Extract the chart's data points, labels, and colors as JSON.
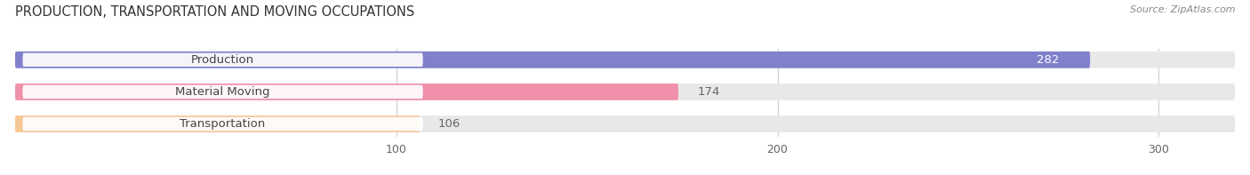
{
  "title": "PRODUCTION, TRANSPORTATION AND MOVING OCCUPATIONS",
  "source": "Source: ZipAtlas.com",
  "categories": [
    "Production",
    "Material Moving",
    "Transportation"
  ],
  "values": [
    282,
    174,
    106
  ],
  "bar_colors": [
    "#8080cc",
    "#f090aa",
    "#f5c896"
  ],
  "bar_bg_color": "#e8e8e8",
  "background_color": "#ffffff",
  "xlim": [
    0,
    320
  ],
  "xticks": [
    100,
    200,
    300
  ],
  "title_fontsize": 10.5,
  "label_fontsize": 9.5,
  "value_fontsize": 9.5,
  "bar_height": 0.52,
  "bar_label_padding": 5
}
